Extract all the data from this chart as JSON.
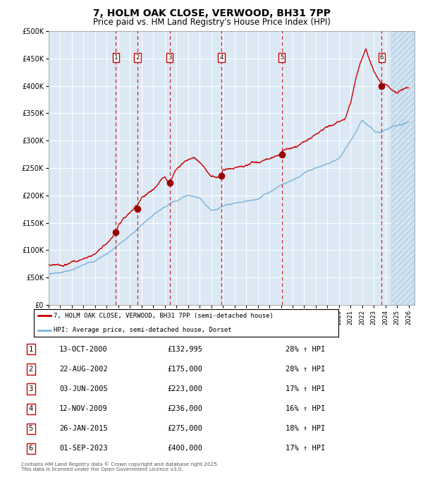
{
  "title": "7, HOLM OAK CLOSE, VERWOOD, BH31 7PP",
  "subtitle": "Price paid vs. HM Land Registry's House Price Index (HPI)",
  "title_fontsize": 10,
  "subtitle_fontsize": 8.5,
  "background_chart": "#dce9f5",
  "background_fig": "#ffffff",
  "grid_color": "#ffffff",
  "hpi_color": "#7ab3d9",
  "price_color": "#cc0000",
  "marker_color": "#990000",
  "dashed_line_color": "#cc0000",
  "ylim": [
    0,
    500000
  ],
  "yticks": [
    0,
    50000,
    100000,
    150000,
    200000,
    250000,
    300000,
    350000,
    400000,
    450000,
    500000
  ],
  "ytick_labels": [
    "£0",
    "£50K",
    "£100K",
    "£150K",
    "£200K",
    "£250K",
    "£300K",
    "£350K",
    "£400K",
    "£450K",
    "£500K"
  ],
  "xmin": 1995.0,
  "xmax": 2026.5,
  "sale_dates_decimal": [
    2000.79,
    2002.64,
    2005.42,
    2009.87,
    2015.07,
    2023.67
  ],
  "sale_prices": [
    132995,
    175000,
    223000,
    236000,
    275000,
    400000
  ],
  "sale_labels": [
    "1",
    "2",
    "3",
    "4",
    "5",
    "6"
  ],
  "legend_line1": "7, HOLM OAK CLOSE, VERWOOD, BH31 7PP (semi-detached house)",
  "legend_line2": "HPI: Average price, semi-detached house, Dorset",
  "table_rows": [
    [
      "1",
      "13-OCT-2000",
      "£132,995",
      "28% ↑ HPI"
    ],
    [
      "2",
      "22-AUG-2002",
      "£175,000",
      "28% ↑ HPI"
    ],
    [
      "3",
      "03-JUN-2005",
      "£223,000",
      "17% ↑ HPI"
    ],
    [
      "4",
      "12-NOV-2009",
      "£236,000",
      "16% ↑ HPI"
    ],
    [
      "5",
      "26-JAN-2015",
      "£275,000",
      "18% ↑ HPI"
    ],
    [
      "6",
      "01-SEP-2023",
      "£400,000",
      "17% ↑ HPI"
    ]
  ],
  "footnote": "Contains HM Land Registry data © Crown copyright and database right 2025.\nThis data is licensed under the Open Government Licence v3.0."
}
